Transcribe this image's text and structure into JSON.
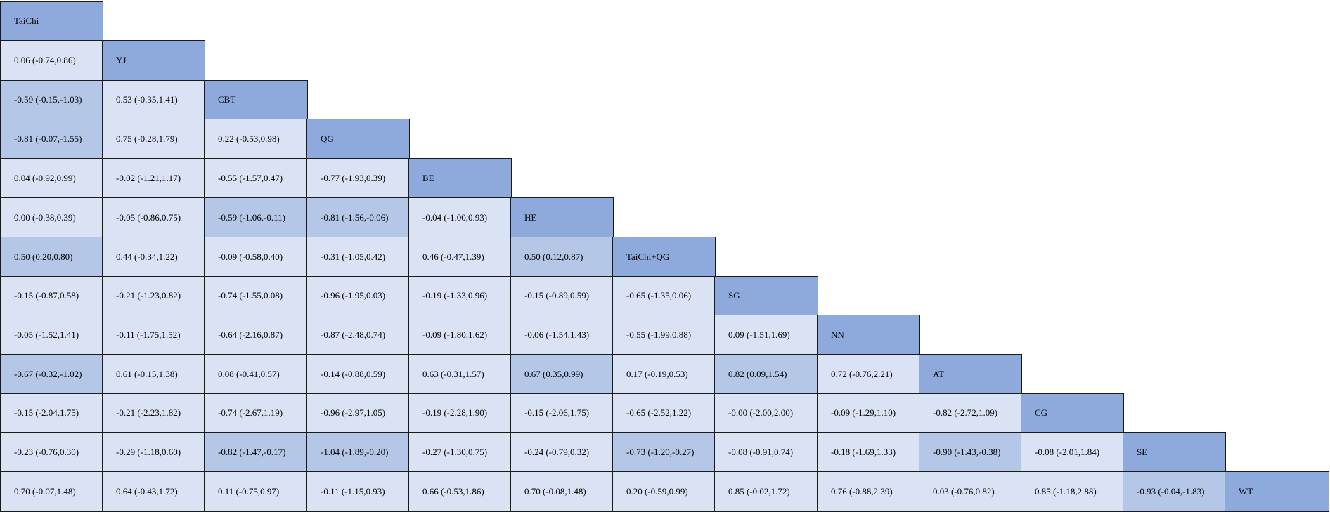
{
  "treatments": [
    "TaiChi",
    "YJ",
    "CBT",
    "QG",
    "BE",
    "HE",
    "TaiChi+QG",
    "SG",
    "NN",
    "AT",
    "CG",
    "SE",
    "WT"
  ],
  "colors": {
    "diagonal": "#8eaadc",
    "normal": "#dae3f3",
    "highlighted": "#b4c7e7",
    "border": "#1a1a1a"
  },
  "rows": [
    [],
    [
      {
        "text": "0.06 (-0.74,0.86)",
        "hl": false
      }
    ],
    [
      {
        "text": "-0.59 (-0.15,-1.03)",
        "hl": true
      },
      {
        "text": "0.53 (-0.35,1.41)",
        "hl": false
      }
    ],
    [
      {
        "text": "-0.81 (-0.07,-1.55)",
        "hl": true
      },
      {
        "text": "0.75 (-0.28,1.79)",
        "hl": false
      },
      {
        "text": "0.22 (-0.53,0.98)",
        "hl": false
      }
    ],
    [
      {
        "text": "0.04 (-0.92,0.99)",
        "hl": false
      },
      {
        "text": "-0.02 (-1.21,1.17)",
        "hl": false
      },
      {
        "text": "-0.55 (-1.57,0.47)",
        "hl": false
      },
      {
        "text": "-0.77 (-1.93,0.39)",
        "hl": false
      }
    ],
    [
      {
        "text": "0.00 (-0.38,0.39)",
        "hl": false
      },
      {
        "text": "-0.05 (-0.86,0.75)",
        "hl": false
      },
      {
        "text": "-0.59 (-1.06,-0.11)",
        "hl": true
      },
      {
        "text": "-0.81 (-1.56,-0.06)",
        "hl": true
      },
      {
        "text": "-0.04 (-1.00,0.93)",
        "hl": false
      }
    ],
    [
      {
        "text": "0.50 (0.20,0.80)",
        "hl": true
      },
      {
        "text": "0.44 (-0.34,1.22)",
        "hl": false
      },
      {
        "text": "-0.09 (-0.58,0.40)",
        "hl": false
      },
      {
        "text": "-0.31 (-1.05,0.42)",
        "hl": false
      },
      {
        "text": "0.46 (-0.47,1.39)",
        "hl": false
      },
      {
        "text": "0.50 (0.12,0.87)",
        "hl": true
      }
    ],
    [
      {
        "text": "-0.15 (-0.87,0.58)",
        "hl": false
      },
      {
        "text": "-0.21 (-1.23,0.82)",
        "hl": false
      },
      {
        "text": "-0.74 (-1.55,0.08)",
        "hl": false
      },
      {
        "text": "-0.96 (-1.95,0.03)",
        "hl": false
      },
      {
        "text": "-0.19 (-1.33,0.96)",
        "hl": false
      },
      {
        "text": "-0.15 (-0.89,0.59)",
        "hl": false
      },
      {
        "text": "-0.65 (-1.35,0.06)",
        "hl": false
      }
    ],
    [
      {
        "text": "-0.05 (-1.52,1.41)",
        "hl": false
      },
      {
        "text": "-0.11 (-1.75,1.52)",
        "hl": false
      },
      {
        "text": "-0.64 (-2.16,0.87)",
        "hl": false
      },
      {
        "text": "-0.87 (-2.48,0.74)",
        "hl": false
      },
      {
        "text": "-0.09 (-1.80,1.62)",
        "hl": false
      },
      {
        "text": "-0.06 (-1.54,1.43)",
        "hl": false
      },
      {
        "text": "-0.55 (-1.99,0.88)",
        "hl": false
      },
      {
        "text": "0.09 (-1.51,1.69)",
        "hl": false
      }
    ],
    [
      {
        "text": "-0.67 (-0.32,-1.02)",
        "hl": true
      },
      {
        "text": "0.61 (-0.15,1.38)",
        "hl": false
      },
      {
        "text": "0.08 (-0.41,0.57)",
        "hl": false
      },
      {
        "text": "-0.14 (-0.88,0.59)",
        "hl": false
      },
      {
        "text": "0.63 (-0.31,1.57)",
        "hl": false
      },
      {
        "text": "0.67 (0.35,0.99)",
        "hl": true
      },
      {
        "text": "0.17 (-0.19,0.53)",
        "hl": false
      },
      {
        "text": "0.82 (0.09,1.54)",
        "hl": true
      },
      {
        "text": "0.72 (-0.76,2.21)",
        "hl": false
      }
    ],
    [
      {
        "text": "-0.15 (-2.04,1.75)",
        "hl": false
      },
      {
        "text": "-0.21 (-2.23,1.82)",
        "hl": false
      },
      {
        "text": "-0.74 (-2.67,1.19)",
        "hl": false
      },
      {
        "text": "-0.96 (-2.97,1.05)",
        "hl": false
      },
      {
        "text": "-0.19 (-2.28,1.90)",
        "hl": false
      },
      {
        "text": "-0.15 (-2.06,1.75)",
        "hl": false
      },
      {
        "text": "-0.65 (-2.52,1.22)",
        "hl": false
      },
      {
        "text": "-0.00 (-2.00,2.00)",
        "hl": false
      },
      {
        "text": "-0.09 (-1.29,1.10)",
        "hl": false
      },
      {
        "text": "-0.82 (-2.72,1.09)",
        "hl": false
      }
    ],
    [
      {
        "text": "-0.23 (-0.76,0.30)",
        "hl": false
      },
      {
        "text": "-0.29 (-1.18,0.60)",
        "hl": false
      },
      {
        "text": "-0.82 (-1.47,-0.17)",
        "hl": true
      },
      {
        "text": "-1.04 (-1.89,-0.20)",
        "hl": true
      },
      {
        "text": "-0.27 (-1.30,0.75)",
        "hl": false
      },
      {
        "text": "-0.24 (-0.79,0.32)",
        "hl": false
      },
      {
        "text": "-0.73 (-1.20,-0.27)",
        "hl": true
      },
      {
        "text": "-0.08 (-0.91,0.74)",
        "hl": false
      },
      {
        "text": "-0.18 (-1.69,1.33)",
        "hl": false
      },
      {
        "text": "-0.90 (-1.43,-0.38)",
        "hl": true
      },
      {
        "text": "-0.08 (-2.01,1.84)",
        "hl": false
      }
    ],
    [
      {
        "text": "0.70 (-0.07,1.48)",
        "hl": false
      },
      {
        "text": "0.64 (-0.43,1.72)",
        "hl": false
      },
      {
        "text": "0.11 (-0.75,0.97)",
        "hl": false
      },
      {
        "text": "-0.11 (-1.15,0.93)",
        "hl": false
      },
      {
        "text": "0.66 (-0.53,1.86)",
        "hl": false
      },
      {
        "text": "0.70 (-0.08,1.48)",
        "hl": false
      },
      {
        "text": "0.20 (-0.59,0.99)",
        "hl": false
      },
      {
        "text": "0.85 (-0.02,1.72)",
        "hl": false
      },
      {
        "text": "0.76 (-0.88,2.39)",
        "hl": false
      },
      {
        "text": "0.03 (-0.76,0.82)",
        "hl": false
      },
      {
        "text": "0.85 (-1.18,2.88)",
        "hl": false
      },
      {
        "text": "-0.93 (-0.04,-1.83)",
        "hl": true
      }
    ]
  ]
}
